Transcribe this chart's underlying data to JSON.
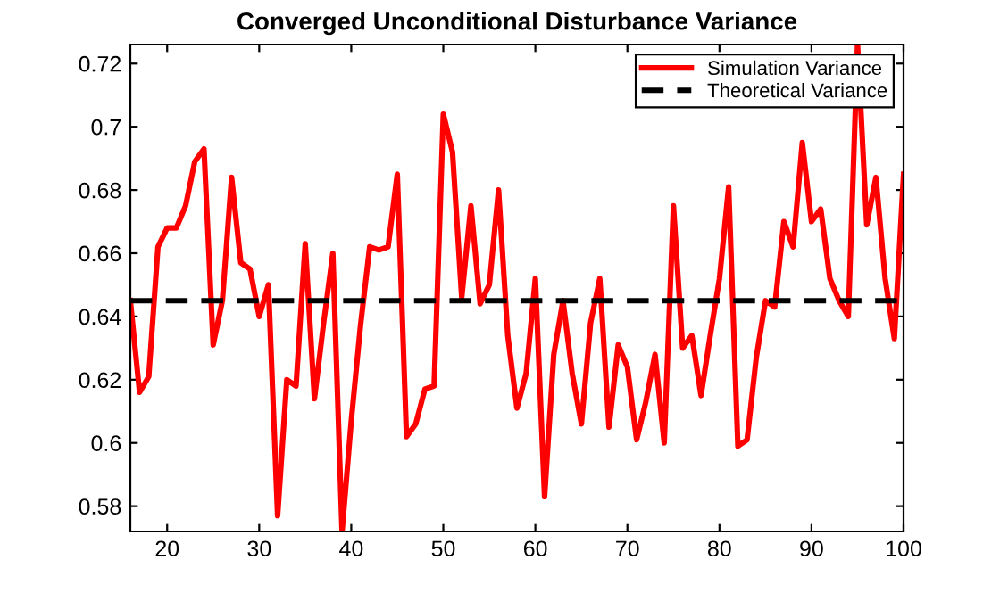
{
  "chart_data": {
    "type": "line",
    "title": "Converged Unconditional Disturbance Variance",
    "x": [
      16,
      17,
      18,
      19,
      20,
      21,
      22,
      23,
      24,
      25,
      26,
      27,
      28,
      29,
      30,
      31,
      32,
      33,
      34,
      35,
      36,
      37,
      38,
      39,
      40,
      41,
      42,
      43,
      44,
      45,
      46,
      47,
      48,
      49,
      50,
      51,
      52,
      53,
      54,
      55,
      56,
      57,
      58,
      59,
      60,
      61,
      62,
      63,
      64,
      65,
      66,
      67,
      68,
      69,
      70,
      71,
      72,
      73,
      74,
      75,
      76,
      77,
      78,
      79,
      80,
      81,
      82,
      83,
      84,
      85,
      86,
      87,
      88,
      89,
      90,
      91,
      92,
      93,
      94,
      95,
      96,
      97,
      98,
      99,
      100
    ],
    "series": [
      {
        "name": "Simulation Variance",
        "color": "#ff0000",
        "line_style": "solid",
        "values": [
          0.645,
          0.616,
          0.621,
          0.662,
          0.668,
          0.668,
          0.675,
          0.689,
          0.693,
          0.631,
          0.645,
          0.684,
          0.657,
          0.655,
          0.64,
          0.65,
          0.577,
          0.62,
          0.618,
          0.663,
          0.614,
          0.638,
          0.66,
          0.572,
          0.607,
          0.637,
          0.662,
          0.661,
          0.662,
          0.685,
          0.602,
          0.606,
          0.617,
          0.618,
          0.704,
          0.692,
          0.646,
          0.675,
          0.644,
          0.65,
          0.68,
          0.634,
          0.611,
          0.622,
          0.652,
          0.583,
          0.628,
          0.645,
          0.622,
          0.606,
          0.638,
          0.652,
          0.605,
          0.631,
          0.624,
          0.601,
          0.613,
          0.628,
          0.6,
          0.675,
          0.63,
          0.634,
          0.615,
          0.634,
          0.652,
          0.681,
          0.599,
          0.601,
          0.627,
          0.645,
          0.643,
          0.67,
          0.662,
          0.695,
          0.67,
          0.674,
          0.652,
          0.645,
          0.64,
          0.726,
          0.669,
          0.684,
          0.652,
          0.633,
          0.685
        ]
      },
      {
        "name": "Theoretical Variance",
        "color": "#000000",
        "line_style": "dashed",
        "x": [
          16,
          100
        ],
        "values": [
          0.645,
          0.645
        ]
      }
    ],
    "xlim": [
      16,
      100
    ],
    "ylim": [
      0.572,
      0.726
    ],
    "xticks": [
      20,
      30,
      40,
      50,
      60,
      70,
      80,
      90,
      100
    ],
    "yticks": [
      0.58,
      0.6,
      0.62,
      0.64,
      0.66,
      0.68,
      0.7,
      0.72
    ],
    "grid": false,
    "legend": "top right",
    "marker": "none"
  }
}
